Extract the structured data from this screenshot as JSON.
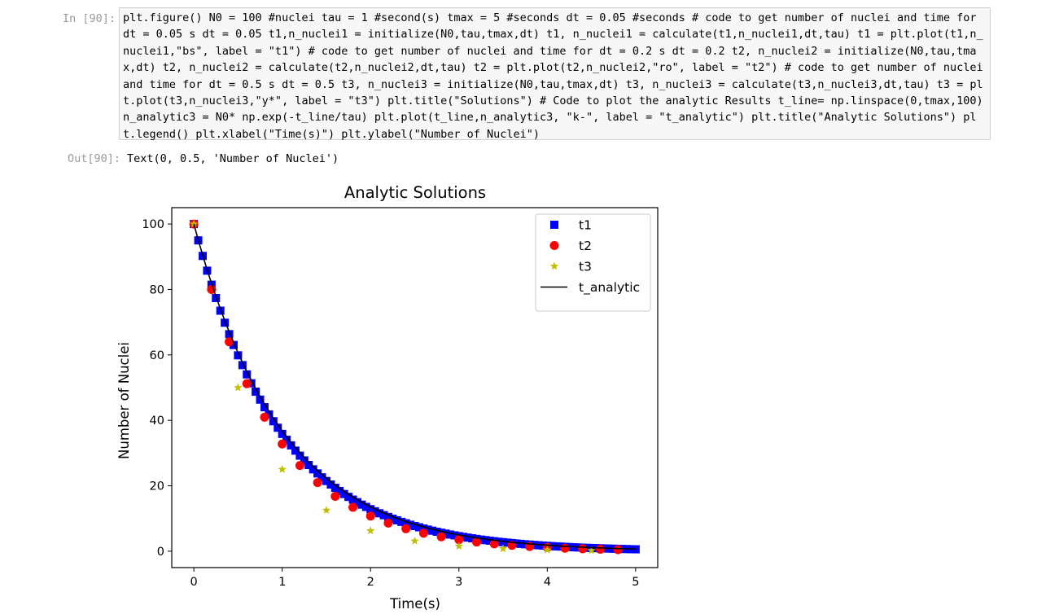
{
  "cell": {
    "in_prompt": "In [90]:",
    "code": "plt.figure() N0 = 100 #nuclei tau = 1 #second(s) tmax = 5 #seconds dt = 0.05 #seconds # code to get number of nuclei and time for dt = 0.05 s dt = 0.05 t1,n_nuclei1 = initialize(N0,tau,tmax,dt) t1, n_nuclei1 = calculate(t1,n_nuclei1,dt,tau) t1 = plt.plot(t1,n_nuclei1,\"bs\", label = \"t1\") # code to get number of nuclei and time for dt = 0.2 s dt = 0.2 t2, n_nuclei2 = initialize(N0,tau,tmax,dt) t2, n_nuclei2 = calculate(t2,n_nuclei2,dt,tau) t2 = plt.plot(t2,n_nuclei2,\"ro\", label = \"t2\") # code to get number of nuclei and time for dt = 0.5 s dt = 0.5 t3, n_nuclei3 = initialize(N0,tau,tmax,dt) t3, n_nuclei3 = calculate(t3,n_nuclei3,dt,tau) t3 = plt.plot(t3,n_nuclei3,\"y*\", label = \"t3\") plt.title(\"Solutions\") # Code to plot the analytic Results t_line= np.linspace(0,tmax,100) n_analytic3 = N0* np.exp(-t_line/tau) plt.plot(t_line,n_analytic3, \"k-\", label = \"t_analytic\") plt.title(\"Analytic Solutions\") plt.legend() plt.xlabel(\"Time(s)\") plt.ylabel(\"Number of Nuclei\")",
    "out_prompt": "Out[90]:",
    "out_text": "Text(0, 0.5, 'Number of Nuclei')"
  },
  "chart_data": {
    "type": "scatter",
    "title": "Analytic Solutions",
    "xlabel": "Time(s)",
    "ylabel": "Number of Nuclei",
    "xlim": [
      -0.25,
      5.25
    ],
    "ylim": [
      -5,
      105
    ],
    "xticks": [
      0,
      1,
      2,
      3,
      4,
      5
    ],
    "yticks": [
      0,
      20,
      40,
      60,
      80,
      100
    ],
    "grid": false,
    "legend_position": "top-right",
    "series": [
      {
        "name": "t1",
        "marker": "square",
        "color": "#0000ff",
        "dt": 0.05,
        "x": [
          0,
          0.05,
          0.1,
          0.15,
          0.2,
          0.25,
          0.3,
          0.35,
          0.4,
          0.45,
          0.5,
          0.55,
          0.6,
          0.65,
          0.7,
          0.75,
          0.8,
          0.85,
          0.9,
          0.95,
          1.0,
          1.05,
          1.1,
          1.15,
          1.2,
          1.25,
          1.3,
          1.35,
          1.4,
          1.45,
          1.5,
          1.55,
          1.6,
          1.65,
          1.7,
          1.75,
          1.8,
          1.85,
          1.9,
          1.95,
          2.0,
          2.05,
          2.1,
          2.15,
          2.2,
          2.25,
          2.3,
          2.35,
          2.4,
          2.45,
          2.5,
          2.55,
          2.6,
          2.65,
          2.7,
          2.75,
          2.8,
          2.85,
          2.9,
          2.95,
          3.0,
          3.05,
          3.1,
          3.15,
          3.2,
          3.25,
          3.3,
          3.35,
          3.4,
          3.45,
          3.5,
          3.55,
          3.6,
          3.65,
          3.7,
          3.75,
          3.8,
          3.85,
          3.9,
          3.95,
          4.0,
          4.05,
          4.1,
          4.15,
          4.2,
          4.25,
          4.3,
          4.35,
          4.4,
          4.45,
          4.5,
          4.55,
          4.6,
          4.65,
          4.7,
          4.75,
          4.8,
          4.85,
          4.9,
          4.95,
          5.0
        ],
        "y": [
          100,
          95.0,
          90.25,
          85.74,
          81.45,
          77.38,
          73.51,
          69.83,
          66.34,
          63.02,
          59.87,
          56.88,
          54.04,
          51.33,
          48.77,
          46.33,
          44.01,
          41.81,
          39.72,
          37.74,
          35.85,
          34.06,
          32.35,
          30.74,
          29.2,
          27.74,
          26.35,
          25.03,
          23.78,
          22.59,
          21.46,
          20.39,
          19.37,
          18.4,
          17.48,
          16.61,
          15.78,
          14.99,
          14.24,
          13.53,
          12.85,
          12.21,
          11.6,
          11.02,
          10.47,
          9.94,
          9.45,
          8.97,
          8.53,
          8.1,
          7.69,
          7.31,
          6.94,
          6.6,
          6.27,
          5.95,
          5.66,
          5.37,
          5.1,
          4.85,
          4.61,
          4.38,
          4.16,
          3.95,
          3.75,
          3.56,
          3.39,
          3.22,
          3.06,
          2.9,
          2.76,
          2.62,
          2.49,
          2.36,
          2.25,
          2.13,
          2.03,
          1.93,
          1.83,
          1.74,
          1.65,
          1.57,
          1.49,
          1.42,
          1.34,
          1.28,
          1.21,
          1.15,
          1.09,
          1.04,
          0.99,
          0.94,
          0.89,
          0.85,
          0.81,
          0.77,
          0.73,
          0.69,
          0.66,
          0.62,
          0.59
        ]
      },
      {
        "name": "t2",
        "marker": "circle",
        "color": "#ff0000",
        "dt": 0.2,
        "x": [
          0,
          0.2,
          0.4,
          0.6,
          0.8,
          1.0,
          1.2,
          1.4,
          1.6,
          1.8,
          2.0,
          2.2,
          2.4,
          2.6,
          2.8,
          3.0,
          3.2,
          3.4,
          3.6,
          3.8,
          4.0,
          4.2,
          4.4,
          4.6,
          4.8
        ],
        "y": [
          100,
          80,
          64,
          51.2,
          40.96,
          32.77,
          26.21,
          20.97,
          16.78,
          13.42,
          10.74,
          8.59,
          6.87,
          5.5,
          4.4,
          3.52,
          2.81,
          2.25,
          1.8,
          1.44,
          1.15,
          0.92,
          0.74,
          0.59,
          0.47
        ]
      },
      {
        "name": "t3",
        "marker": "star",
        "color": "#bfbf00",
        "dt": 0.5,
        "x": [
          0,
          0.5,
          1.0,
          1.5,
          2.0,
          2.5,
          3.0,
          3.5,
          4.0,
          4.5
        ],
        "y": [
          100,
          50,
          25,
          12.5,
          6.25,
          3.13,
          1.56,
          0.78,
          0.39,
          0.2
        ]
      },
      {
        "name": "t_analytic",
        "marker": "line",
        "color": "#000000",
        "formula": "100*exp(-t/1)",
        "x_range": [
          0,
          5
        ],
        "points": 100
      }
    ]
  }
}
